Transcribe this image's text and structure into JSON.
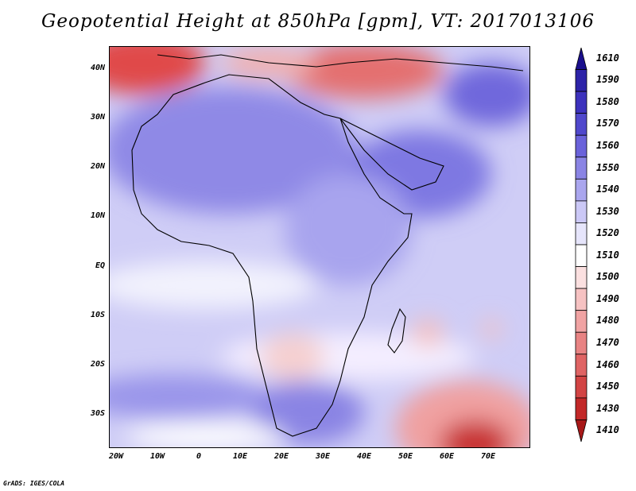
{
  "title": "Geopotential Height at 850hPa [gpm], VT: 2017013106",
  "credit": "GrADS: IGES/COLA",
  "lat_labels": [
    "40N",
    "30N",
    "20N",
    "10N",
    "EQ",
    "10S",
    "20S",
    "30S"
  ],
  "lon_labels": [
    "20W",
    "10W",
    "0",
    "10E",
    "20E",
    "30E",
    "40E",
    "50E",
    "60E",
    "70E"
  ],
  "colorbar": {
    "top_value": "1610",
    "levels": [
      "1590",
      "1580",
      "1570",
      "1560",
      "1550",
      "1540",
      "1530",
      "1520",
      "1510",
      "1500",
      "1490",
      "1480",
      "1470",
      "1460",
      "1450",
      "1430",
      "1410"
    ],
    "colors": [
      "#1a0f8c",
      "#2d23a8",
      "#3d32bd",
      "#5048cc",
      "#6a62da",
      "#8a84e4",
      "#aaa6ee",
      "#cbc8f6",
      "#e6e5fb",
      "#ffffff",
      "#fbe0e0",
      "#f6c2c2",
      "#f0a3a3",
      "#e88383",
      "#df6464",
      "#d24444",
      "#c22828",
      "#a81818"
    ]
  }
}
